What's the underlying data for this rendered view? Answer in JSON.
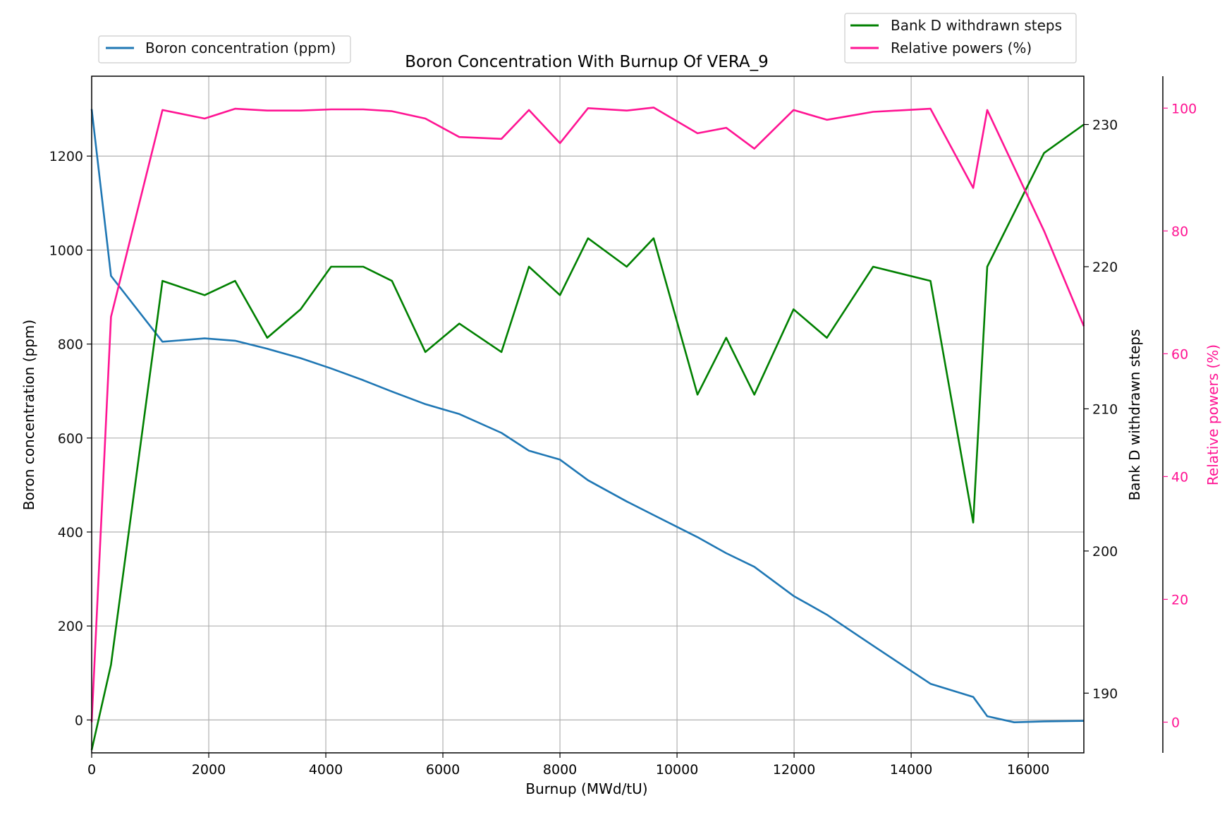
{
  "chart_data": {
    "type": "line",
    "title": "Boron Concentration With Burnup Of VERA_9",
    "xlabel": "Burnup (MWd/tU)",
    "xlim": [
      0,
      16950
    ],
    "x_ticks": [
      0,
      2000,
      4000,
      6000,
      8000,
      10000,
      12000,
      14000,
      16000
    ],
    "grid": true,
    "axes": {
      "left": {
        "label": "Boron concentration (ppm)",
        "ylim": [
          -70,
          1370
        ],
        "ticks": [
          0,
          200,
          400,
          600,
          800,
          1000,
          1200
        ],
        "color": "#111111"
      },
      "right1": {
        "label": "Bank D withdrawn steps",
        "ylim": [
          185.8,
          233.4
        ],
        "ticks": [
          190,
          200,
          210,
          220,
          230
        ],
        "color": "#111111"
      },
      "right2": {
        "label": "Relative powers (%)",
        "ylim": [
          -5.0,
          105.2
        ],
        "ticks": [
          0,
          20,
          40,
          60,
          80,
          100
        ],
        "color": "#ff1493"
      }
    },
    "series": [
      {
        "name": "Boron concentration (ppm)",
        "axis": "left",
        "color": "#1f77b4",
        "x": [
          0,
          330,
          1210,
          1930,
          2450,
          3000,
          3570,
          4090,
          4640,
          5130,
          5700,
          6280,
          7000,
          7470,
          8000,
          8480,
          9140,
          9600,
          10350,
          10840,
          11320,
          11990,
          12560,
          13350,
          14330,
          15060,
          15300,
          15760,
          16270,
          16950
        ],
        "values": [
          1300,
          945,
          805,
          812,
          807,
          790,
          770,
          748,
          723,
          699,
          672,
          651,
          611,
          573,
          554,
          510,
          465,
          436,
          389,
          355,
          326,
          264,
          224,
          158,
          77,
          49,
          8,
          -5,
          -3,
          -2
        ]
      },
      {
        "name": "Bank D withdrawn steps",
        "axis": "right1",
        "color": "#008000",
        "x": [
          0,
          330,
          1210,
          1930,
          2450,
          3000,
          3570,
          4090,
          4640,
          5130,
          5700,
          6280,
          7000,
          7470,
          8000,
          8480,
          9140,
          9600,
          10350,
          10840,
          11320,
          11990,
          12560,
          13350,
          14330,
          15060,
          15300,
          16270,
          16950
        ],
        "values": [
          186,
          192,
          219,
          218,
          219,
          215,
          217,
          220,
          220,
          219,
          214,
          216,
          214,
          220,
          218,
          222,
          220,
          222,
          211,
          215,
          211,
          217,
          215,
          220,
          219,
          202,
          220,
          228,
          230
        ]
      },
      {
        "name": "Relative powers (%)",
        "axis": "right2",
        "color": "#ff1493",
        "x": [
          0,
          330,
          1210,
          1930,
          2450,
          3000,
          3570,
          4090,
          4640,
          5130,
          5700,
          6280,
          7000,
          7470,
          8000,
          8480,
          9140,
          9600,
          10350,
          10840,
          11320,
          11990,
          12560,
          13350,
          14330,
          15060,
          15300,
          16270,
          16950
        ],
        "values": [
          0,
          66,
          99.7,
          98.3,
          99.9,
          99.6,
          99.6,
          99.8,
          99.8,
          99.5,
          98.3,
          95.3,
          95,
          99.7,
          94.3,
          100,
          99.6,
          100.1,
          95.9,
          96.8,
          93.4,
          99.7,
          98.1,
          99.4,
          99.9,
          87,
          99.7,
          80,
          64.5
        ]
      }
    ],
    "legends": [
      {
        "placement": "upper-left-outside",
        "entries": [
          0
        ]
      },
      {
        "placement": "upper-right-outside",
        "entries": [
          1,
          2
        ]
      }
    ]
  }
}
